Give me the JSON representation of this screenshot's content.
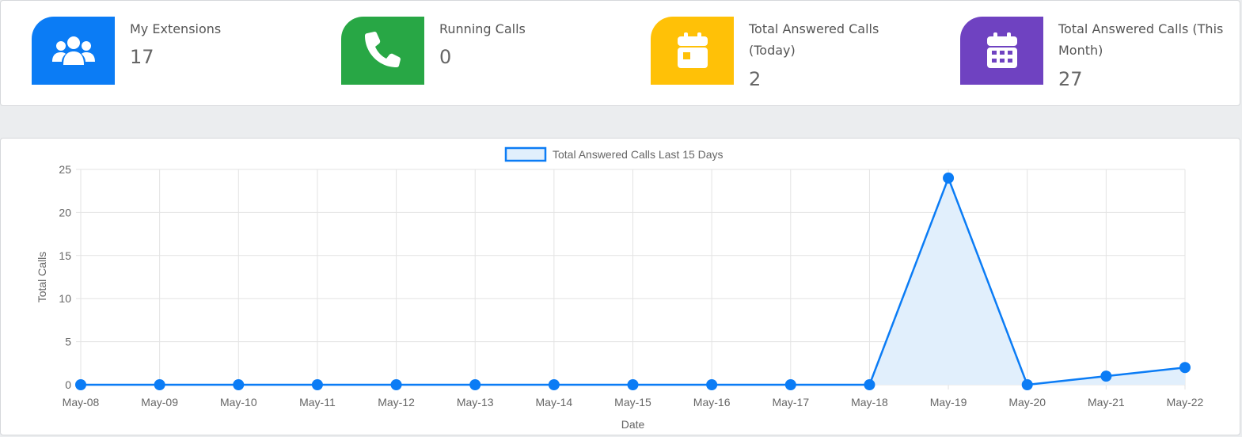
{
  "stats": [
    {
      "label": "My Extensions",
      "value": "17",
      "color": "#0b7cf5",
      "icon": "users-icon"
    },
    {
      "label": "Running Calls",
      "value": "0",
      "color": "#28a745",
      "icon": "phone-icon"
    },
    {
      "label": "Total Answered Calls (Today)",
      "value": "2",
      "color": "#ffc107",
      "icon": "calendar-day-icon"
    },
    {
      "label": "Total Answered Calls (This Month)",
      "value": "27",
      "color": "#6f42c1",
      "icon": "calendar-month-icon"
    }
  ],
  "chart_data": {
    "type": "line",
    "legend": "Total Answered Calls Last 15 Days",
    "xlabel": "Date",
    "ylabel": "Total Calls",
    "ylim": [
      0,
      25
    ],
    "yticks": [
      0,
      5,
      10,
      15,
      20,
      25
    ],
    "categories": [
      "May-08",
      "May-09",
      "May-10",
      "May-11",
      "May-12",
      "May-13",
      "May-14",
      "May-15",
      "May-16",
      "May-17",
      "May-18",
      "May-19",
      "May-20",
      "May-21",
      "May-22"
    ],
    "series": [
      {
        "name": "Total Answered Calls Last 15 Days",
        "values": [
          0,
          0,
          0,
          0,
          0,
          0,
          0,
          0,
          0,
          0,
          0,
          24,
          0,
          1,
          2
        ],
        "color": "#0b7cf5",
        "fill": "#e1effc"
      }
    ],
    "grid": true,
    "legend_position": "top"
  }
}
